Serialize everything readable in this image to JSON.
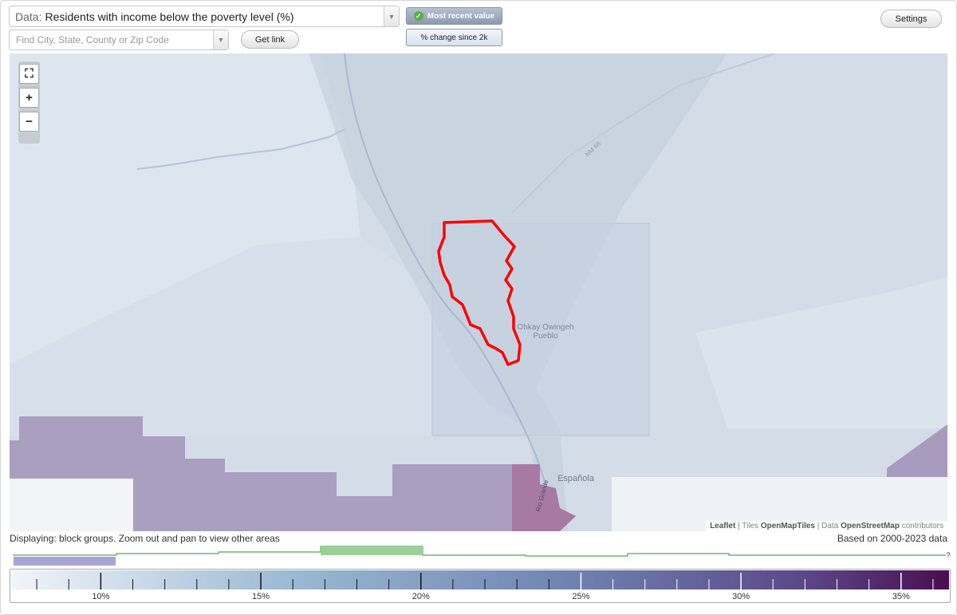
{
  "header": {
    "data_label": "Data:",
    "data_value": "Residents with income below the poverty level (%)",
    "search_placeholder": "Find City, State, County or Zip Code",
    "get_link": "Get link",
    "settings": "Settings",
    "toggle_recent": "Most recent value",
    "toggle_change": "% change since 2k"
  },
  "map": {
    "places": [
      "Ohkay Owingeh",
      "Pueblo",
      "Española",
      "NM 68",
      "Rio Grande"
    ],
    "attribution": {
      "leaflet": "Leaflet",
      "tiles_label": "Tiles",
      "tiles": "OpenMapTiles",
      "data_label": "Data",
      "data": "OpenStreetMap",
      "suffix": "contributors"
    },
    "colors": {
      "highlight_outline": "#ff0000",
      "purple": "#a89bbe",
      "magenta": "#a77aa3",
      "light_bg": "#dde4ec"
    }
  },
  "footer": {
    "displaying": "Displaying: block groups. Zoom out and pan to view other areas",
    "based_on": "Based on 2000-2023 data"
  },
  "legend": {
    "ticks": [
      "10%",
      "15%",
      "20%",
      "25%",
      "30%",
      "35%"
    ],
    "tick_values": [
      10,
      15,
      20,
      25,
      30,
      35
    ],
    "range": [
      7.2,
      36.5
    ],
    "gradient": [
      "#f2f5f9",
      "#9ab9d3",
      "#6f82b0",
      "#5a4687",
      "#4a0e4e"
    ],
    "histogram_unknown": "?"
  }
}
